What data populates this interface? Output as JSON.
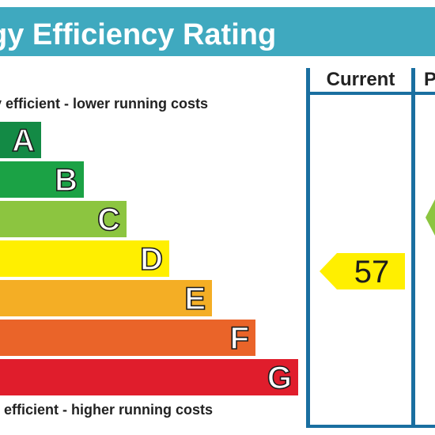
{
  "title": "gy Efficiency Rating",
  "columns": {
    "current": "Current",
    "potential": "P"
  },
  "notes": {
    "top": "y efficient - lower running costs",
    "bottom": "y efficient - higher running costs"
  },
  "bands": [
    {
      "letter": "A",
      "color": "#138a45"
    },
    {
      "letter": "B",
      "color": "#1ba245"
    },
    {
      "letter": "C",
      "color": "#8cc540"
    },
    {
      "letter": "D",
      "color": "#ffef00"
    },
    {
      "letter": "E",
      "color": "#f4ae25"
    },
    {
      "letter": "F",
      "color": "#ea6429"
    },
    {
      "letter": "G",
      "color": "#e01d2c"
    }
  ],
  "current_rating": {
    "value": "57",
    "band": "D",
    "color": "#ffef00"
  },
  "potential_rating": {
    "band": "C",
    "color": "#8cc540"
  }
}
